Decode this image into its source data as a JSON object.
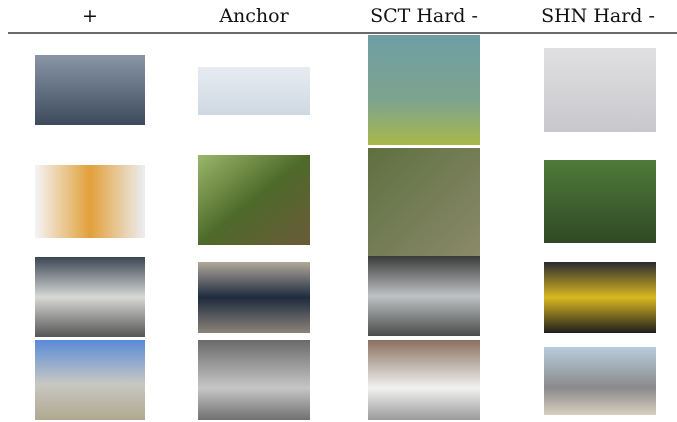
{
  "header": {
    "columns": [
      "+",
      "Anchor",
      "SCT Hard -",
      "SHN Hard -"
    ]
  }
}
